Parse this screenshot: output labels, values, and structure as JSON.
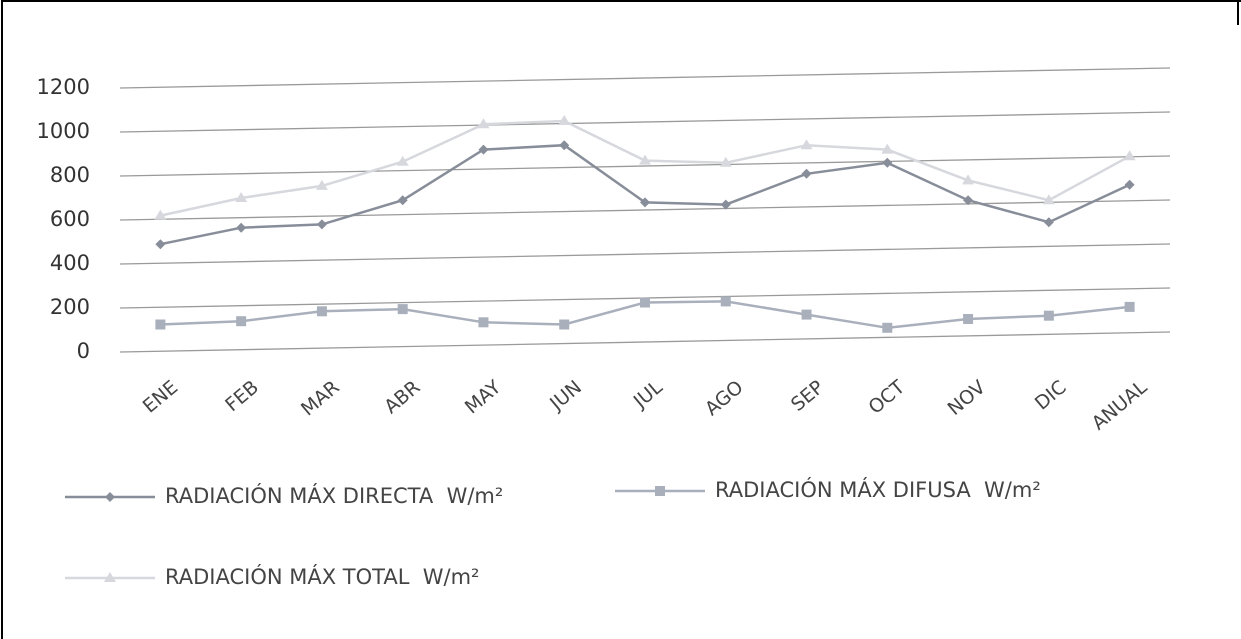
{
  "chart_data": {
    "type": "line",
    "categories": [
      "ENE",
      "FEB",
      "MAR",
      "ABR",
      "MAY",
      "JUN",
      "JUL",
      "AGO",
      "SEP",
      "OCT",
      "NOV",
      "DIC",
      "ANUAL"
    ],
    "series": [
      {
        "name": "RADIACIÓN MÁX DIRECTA  W/m²",
        "color": "#878d99",
        "marker": "diamond",
        "values": [
          490,
          565,
          580,
          690,
          920,
          940,
          680,
          670,
          810,
          860,
          690,
          590,
          760
        ]
      },
      {
        "name": "RADIACIÓN MÁX DIFUSA  W/m²",
        "color": "#a9b0bc",
        "marker": "square",
        "values": [
          125,
          140,
          185,
          195,
          135,
          125,
          225,
          230,
          170,
          110,
          150,
          165,
          205
        ]
      },
      {
        "name": "RADIACIÓN MÁX TOTAL  W/m²",
        "color": "#d6d8dd",
        "marker": "triangle",
        "values": [
          620,
          700,
          755,
          865,
          1035,
          1050,
          870,
          860,
          940,
          920,
          780,
          690,
          890
        ]
      }
    ],
    "ylim": [
      0,
      1200
    ],
    "yticks": [
      0,
      200,
      400,
      600,
      800,
      1000,
      1200
    ],
    "grid": true
  }
}
